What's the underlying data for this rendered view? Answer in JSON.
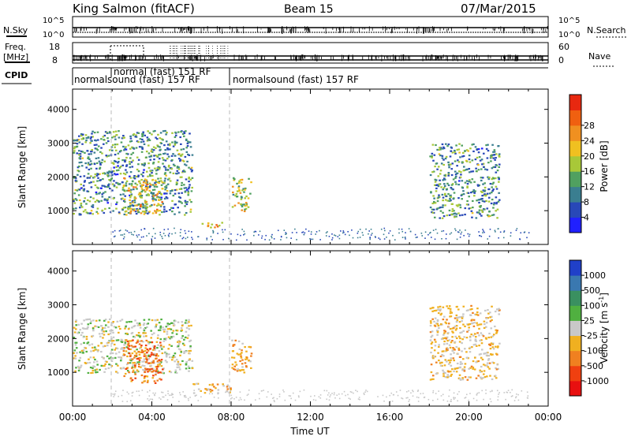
{
  "header": {
    "station": "King Salmon (fitACF)",
    "beam": "Beam 15",
    "date": "07/Mar/2015"
  },
  "panels": {
    "nsky_label": "N.Sky",
    "nsearch_label": "N.Search",
    "nsky_ticks": [
      "10^5",
      "10^0"
    ],
    "nsearch_ticks": [
      "10^5",
      "10^0"
    ],
    "freq_label_1": "Freq.",
    "freq_label_2": "[MHz]",
    "freq_ticks": [
      "18",
      "8"
    ],
    "nave_label": "Nave",
    "nave_ticks": [
      "60",
      "0"
    ],
    "cpid_label": "CPID",
    "cpid_segments": [
      {
        "label": "normalsound (fast) 157 RF",
        "start": "00:00",
        "end": "08:00"
      },
      {
        "label": "normal (fast) 151 RF",
        "start": "02:00",
        "end": "07:50"
      },
      {
        "label": "normalsound (fast) 157 RF",
        "start": "08:00",
        "end": "24:00"
      }
    ]
  },
  "axes": {
    "xlabel": "Time UT",
    "x_ticks": [
      "00:00",
      "04:00",
      "08:00",
      "12:00",
      "16:00",
      "20:00",
      "00:00"
    ],
    "ylabel": "Slant Range [km]",
    "y_ticks": [
      "1000",
      "2000",
      "3000",
      "4000"
    ]
  },
  "colorbars": {
    "power": {
      "label": "Power [dB]",
      "ticks": [
        "4",
        "8",
        "12",
        "16",
        "20",
        "24",
        "28"
      ],
      "colors": [
        "#2020ff",
        "#2848b8",
        "#3a7e90",
        "#50a060",
        "#a8c838",
        "#f0c020",
        "#f09020",
        "#f06010",
        "#e82810"
      ]
    },
    "velocity": {
      "label": "Velocity [m s",
      "label_sup": "-1",
      "label_end": "]",
      "ticks": [
        "1000",
        "500",
        "100",
        "25",
        "-25",
        "-100",
        "-500",
        "-1000"
      ],
      "colors": [
        "#2040c8",
        "#3a78b0",
        "#3a9060",
        "#50b040",
        "#c8c8c8",
        "#f0b020",
        "#f08020",
        "#f04010",
        "#e81010"
      ]
    }
  },
  "chart_data": [
    {
      "type": "heatmap",
      "title": "Power",
      "xlabel": "Time UT",
      "ylabel": "Slant Range [km]",
      "x_range": [
        "00:00",
        "24:00"
      ],
      "y_range_km": [
        0,
        4600
      ],
      "colorbar": "Power [dB]",
      "colorbar_range": [
        0,
        30
      ],
      "echo_regions": [
        {
          "t_start_h": 0.0,
          "t_end_h": 6.0,
          "range_km": [
            900,
            3400
          ],
          "power_db": 10
        },
        {
          "t_start_h": 2.5,
          "t_end_h": 4.5,
          "range_km": [
            900,
            2000
          ],
          "power_db": 18
        },
        {
          "t_start_h": 6.5,
          "t_end_h": 7.5,
          "range_km": [
            500,
            700
          ],
          "power_db": 20
        },
        {
          "t_start_h": 8.0,
          "t_end_h": 9.0,
          "range_km": [
            1000,
            2000
          ],
          "power_db": 16
        },
        {
          "t_start_h": 18.0,
          "t_end_h": 21.5,
          "range_km": [
            800,
            3000
          ],
          "power_db": 10
        }
      ]
    },
    {
      "type": "heatmap",
      "title": "Velocity",
      "xlabel": "Time UT",
      "ylabel": "Slant Range [km]",
      "x_range": [
        "00:00",
        "24:00"
      ],
      "y_range_km": [
        0,
        4600
      ],
      "colorbar": "Velocity [m s-1]",
      "colorbar_range": [
        -1000,
        1000
      ],
      "echo_regions": [
        {
          "t_start_h": 0.0,
          "t_end_h": 6.0,
          "range_km": [
            1000,
            2600
          ],
          "velocity_ms": 0
        },
        {
          "t_start_h": 2.5,
          "t_end_h": 4.5,
          "range_km": [
            700,
            2000
          ],
          "velocity_ms": -500
        },
        {
          "t_start_h": 6.0,
          "t_end_h": 8.0,
          "range_km": [
            400,
            700
          ],
          "velocity_ms": -200
        },
        {
          "t_start_h": 8.0,
          "t_end_h": 9.0,
          "range_km": [
            1000,
            2000
          ],
          "velocity_ms": -300
        },
        {
          "t_start_h": 18.0,
          "t_end_h": 21.5,
          "range_km": [
            800,
            3000
          ],
          "velocity_ms": -150
        }
      ]
    }
  ]
}
